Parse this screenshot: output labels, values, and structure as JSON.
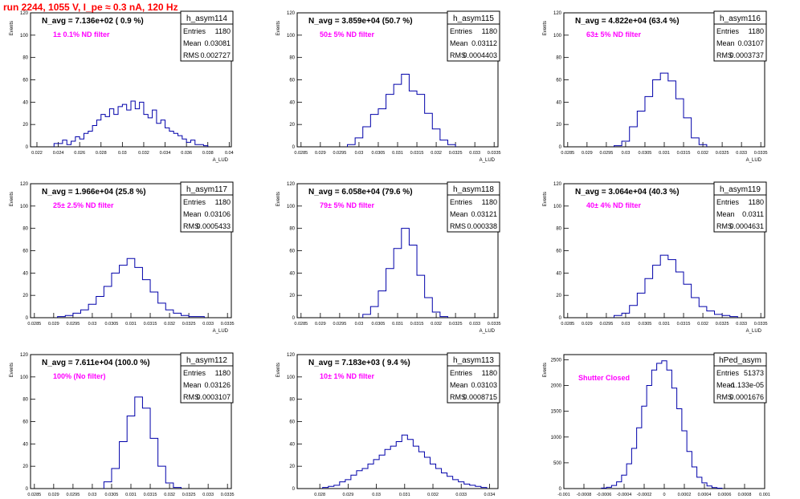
{
  "page": {
    "title": "run 2244,  1055 V, I_pe ≈ 0.3 nA, 120 Hz"
  },
  "colors": {
    "histogram": "#0000aa",
    "annotation": "#ff00ff",
    "title": "#ff0000",
    "axis": "#000000"
  },
  "chart_data": [
    {
      "type": "histogram",
      "name": "h_asym114",
      "header": "N_avg = 7.136e+02 ( 0.9 %)",
      "annotation": "1± 0.1% ND filter",
      "stats": {
        "Entries": "1180",
        "Mean": "0.03081",
        "RMS": "0.002727"
      },
      "ylabel": "Events",
      "xlabel": "A_LUD",
      "xlim": [
        0.0214,
        0.0402
      ],
      "ylim": [
        0,
        120
      ],
      "xticks": [
        "0.022",
        "0.024",
        "0.026",
        "0.028",
        "0.03",
        "0.032",
        "0.034",
        "0.036",
        "0.038",
        "0.04"
      ],
      "yticks": [
        "0",
        "20",
        "40",
        "60",
        "80",
        "100",
        "120"
      ],
      "bins": [
        0.0238,
        0.0242,
        0.0246,
        0.025,
        0.0254,
        0.0258,
        0.0262,
        0.0266,
        0.027,
        0.0274,
        0.0278,
        0.0282,
        0.0286,
        0.029,
        0.0294,
        0.0298,
        0.0302,
        0.0306,
        0.031,
        0.0314,
        0.0318,
        0.0322,
        0.0326,
        0.033,
        0.0334,
        0.0338,
        0.0342,
        0.0346,
        0.035,
        0.0354,
        0.0358,
        0.0362,
        0.0366,
        0.037,
        0.0374,
        0.0378
      ],
      "counts": [
        3,
        3,
        6,
        2,
        5,
        9,
        7,
        12,
        14,
        19,
        24,
        29,
        27,
        34,
        29,
        36,
        38,
        33,
        41,
        34,
        40,
        29,
        26,
        33,
        21,
        24,
        17,
        14,
        12,
        10,
        7,
        4,
        6,
        2,
        2,
        1
      ]
    },
    {
      "type": "histogram",
      "name": "h_asym115",
      "header": "N_avg = 3.859e+04 (50.7 %)",
      "annotation": "50± 5% ND filter",
      "stats": {
        "Entries": "1180",
        "Mean": "0.03112",
        "RMS": "0.0004403"
      },
      "ylabel": "Events",
      "xlabel": "A_LUD",
      "xlim": [
        0.0284,
        0.0336
      ],
      "ylim": [
        0,
        120
      ],
      "xticks": [
        "0.0285",
        "0.029",
        "0.0295",
        "0.03",
        "0.0305",
        "0.031",
        "0.0315",
        "0.032",
        "0.0325",
        "0.033",
        "0.0335"
      ],
      "yticks": [
        "0",
        "20",
        "40",
        "60",
        "80",
        "100",
        "120"
      ],
      "bins": [
        0.0298,
        0.03,
        0.0302,
        0.0304,
        0.0306,
        0.0308,
        0.031,
        0.0312,
        0.0314,
        0.0316,
        0.0318,
        0.032,
        0.0322,
        0.0324
      ],
      "counts": [
        2,
        8,
        18,
        29,
        34,
        47,
        56,
        65,
        50,
        47,
        30,
        16,
        6,
        2
      ]
    },
    {
      "type": "histogram",
      "name": "h_asym116",
      "header": "N_avg = 4.822e+04 (63.4 %)",
      "annotation": "63± 5% ND filter",
      "stats": {
        "Entries": "1180",
        "Mean": "0.03107",
        "RMS": "0.0003737"
      },
      "ylabel": "Events",
      "xlabel": "A_LUD",
      "xlim": [
        0.0284,
        0.0336
      ],
      "ylim": [
        0,
        120
      ],
      "xticks": [
        "0.0285",
        "0.029",
        "0.0295",
        "0.03",
        "0.0305",
        "0.031",
        "0.0315",
        "0.032",
        "0.0325",
        "0.033",
        "0.0335"
      ],
      "yticks": [
        "0",
        "20",
        "40",
        "60",
        "80",
        "100",
        "120"
      ],
      "bins": [
        0.0298,
        0.03,
        0.0302,
        0.0304,
        0.0306,
        0.0308,
        0.031,
        0.0312,
        0.0314,
        0.0316,
        0.0318,
        0.032
      ],
      "counts": [
        1,
        5,
        18,
        32,
        45,
        60,
        66,
        59,
        43,
        26,
        8,
        2
      ]
    },
    {
      "type": "histogram",
      "name": "h_asym117",
      "header": "N_avg = 1.966e+04 (25.8 %)",
      "annotation": "25± 2.5% ND filter",
      "stats": {
        "Entries": "1180",
        "Mean": "0.03106",
        "RMS": "0.0005433"
      },
      "ylabel": "Events",
      "xlabel": "A_LUD",
      "xlim": [
        0.0284,
        0.0336
      ],
      "ylim": [
        0,
        120
      ],
      "xticks": [
        "0.0285",
        "0.029",
        "0.0295",
        "0.03",
        "0.0305",
        "0.031",
        "0.0315",
        "0.032",
        "0.0325",
        "0.033",
        "0.0335"
      ],
      "yticks": [
        "0",
        "20",
        "40",
        "60",
        "80",
        "100",
        "120"
      ],
      "bins": [
        0.0292,
        0.0294,
        0.0296,
        0.0298,
        0.03,
        0.0302,
        0.0304,
        0.0306,
        0.0308,
        0.031,
        0.0312,
        0.0314,
        0.0316,
        0.0318,
        0.032,
        0.0322,
        0.0324,
        0.0326,
        0.0328
      ],
      "counts": [
        1,
        2,
        4,
        7,
        12,
        19,
        28,
        40,
        47,
        53,
        45,
        34,
        23,
        13,
        7,
        4,
        2,
        1,
        1
      ]
    },
    {
      "type": "histogram",
      "name": "h_asym118",
      "header": "N_avg = 6.058e+04 (79.6 %)",
      "annotation": "79± 5% ND filter",
      "stats": {
        "Entries": "1180",
        "Mean": "0.03121",
        "RMS": "0.000338"
      },
      "ylabel": "Events",
      "xlabel": "A_LUD",
      "xlim": [
        0.0284,
        0.0336
      ],
      "ylim": [
        0,
        120
      ],
      "xticks": [
        "0.0285",
        "0.029",
        "0.0295",
        "0.03",
        "0.0305",
        "0.031",
        "0.0315",
        "0.032",
        "0.0325",
        "0.033",
        "0.0335"
      ],
      "yticks": [
        "0",
        "20",
        "40",
        "60",
        "80",
        "100",
        "120"
      ],
      "bins": [
        0.0302,
        0.0304,
        0.0306,
        0.0308,
        0.031,
        0.0312,
        0.0314,
        0.0316,
        0.0318,
        0.032,
        0.0322
      ],
      "counts": [
        3,
        10,
        24,
        44,
        62,
        80,
        65,
        38,
        18,
        5,
        1
      ]
    },
    {
      "type": "histogram",
      "name": "h_asym119",
      "header": "N_avg = 3.064e+04 (40.3 %)",
      "annotation": "40± 4% ND filter",
      "stats": {
        "Entries": "1180",
        "Mean": "0.0311",
        "RMS": "0.0004631"
      },
      "ylabel": "Events",
      "xlabel": "A_LUD",
      "xlim": [
        0.0284,
        0.0336
      ],
      "ylim": [
        0,
        120
      ],
      "xticks": [
        "0.0285",
        "0.029",
        "0.0295",
        "0.03",
        "0.0305",
        "0.031",
        "0.0315",
        "0.032",
        "0.0325",
        "0.033",
        "0.0335"
      ],
      "yticks": [
        "0",
        "20",
        "40",
        "60",
        "80",
        "100",
        "120"
      ],
      "bins": [
        0.0298,
        0.03,
        0.0302,
        0.0304,
        0.0306,
        0.0308,
        0.031,
        0.0312,
        0.0314,
        0.0316,
        0.0318,
        0.032,
        0.0322,
        0.0324,
        0.0326,
        0.0328
      ],
      "counts": [
        2,
        4,
        11,
        22,
        35,
        47,
        56,
        52,
        41,
        30,
        18,
        10,
        6,
        3,
        2,
        1
      ]
    },
    {
      "type": "histogram",
      "name": "h_asym112",
      "header": "N_avg = 7.611e+04 (100.0 %)",
      "annotation": "100% (No filter)",
      "stats": {
        "Entries": "1180",
        "Mean": "0.03126",
        "RMS": "0.0003107"
      },
      "ylabel": "Events",
      "xlabel": "A_LUD",
      "xlim": [
        0.0284,
        0.0336
      ],
      "ylim": [
        0,
        120
      ],
      "xticks": [
        "0.0285",
        "0.029",
        "0.0295",
        "0.03",
        "0.0305",
        "0.031",
        "0.0315",
        "0.032",
        "0.0325",
        "0.033",
        "0.0335"
      ],
      "yticks": [
        "0",
        "20",
        "40",
        "60",
        "80",
        "100",
        "120"
      ],
      "bins": [
        0.0304,
        0.0306,
        0.0308,
        0.031,
        0.0312,
        0.0314,
        0.0316,
        0.0318,
        0.032,
        0.0322
      ],
      "counts": [
        6,
        18,
        42,
        65,
        82,
        72,
        45,
        20,
        5,
        1
      ]
    },
    {
      "type": "histogram",
      "name": "h_asym113",
      "header": "N_avg = 7.183e+03 ( 9.4 %)",
      "annotation": "10± 1% ND filter",
      "stats": {
        "Entries": "1180",
        "Mean": "0.03103",
        "RMS": "0.0008715"
      },
      "ylabel": "Events",
      "xlabel": "A_LUD",
      "xlim": [
        0.0272,
        0.0343
      ],
      "ylim": [
        0,
        120
      ],
      "xticks": [
        "0.028",
        "0.029",
        "0.03",
        "0.031",
        "0.032",
        "0.033",
        "0.034"
      ],
      "yticks": [
        "0",
        "20",
        "40",
        "60",
        "80",
        "100",
        "120"
      ],
      "bins": [
        0.0282,
        0.0284,
        0.0286,
        0.0288,
        0.029,
        0.0292,
        0.0294,
        0.0296,
        0.0298,
        0.03,
        0.0302,
        0.0304,
        0.0306,
        0.0308,
        0.031,
        0.0312,
        0.0314,
        0.0316,
        0.0318,
        0.032,
        0.0322,
        0.0324,
        0.0326,
        0.0328,
        0.033,
        0.0332,
        0.0334,
        0.0336,
        0.0338
      ],
      "counts": [
        1,
        2,
        3,
        6,
        8,
        12,
        16,
        18,
        22,
        26,
        30,
        35,
        38,
        42,
        48,
        44,
        38,
        33,
        28,
        22,
        18,
        14,
        11,
        8,
        6,
        4,
        3,
        2,
        1
      ]
    },
    {
      "type": "histogram",
      "name": "hPed_asym",
      "header": "",
      "annotation": "Shutter Closed",
      "stats": {
        "Entries": "51373",
        "Mean": "-1.133e-05",
        "RMS": "0.0001676"
      },
      "ylabel": "Events",
      "xlabel": "",
      "xlim": [
        -0.001,
        0.001
      ],
      "ylim": [
        0,
        2600
      ],
      "xticks": [
        "-0.001",
        "-0.0008",
        "-0.0006",
        "-0.0004",
        "-0.0002",
        "0",
        "0.0002",
        "0.0004",
        "0.0006",
        "0.0008",
        "0.001"
      ],
      "yticks": [
        "0",
        "500",
        "1000",
        "1500",
        "2000",
        "2500"
      ],
      "bins": [
        -0.0006,
        -0.00055,
        -0.0005,
        -0.00045,
        -0.0004,
        -0.00035,
        -0.0003,
        -0.00025,
        -0.0002,
        -0.00015,
        -0.0001,
        -5e-05,
        0,
        5e-05,
        0.0001,
        0.00015,
        0.0002,
        0.00025,
        0.0003,
        0.00035,
        0.0004,
        0.00045,
        0.0005,
        0.00055
      ],
      "counts": [
        10,
        25,
        60,
        130,
        260,
        480,
        780,
        1180,
        1600,
        2000,
        2300,
        2430,
        2480,
        2300,
        1950,
        1550,
        1120,
        720,
        420,
        220,
        110,
        50,
        20,
        8
      ]
    }
  ]
}
